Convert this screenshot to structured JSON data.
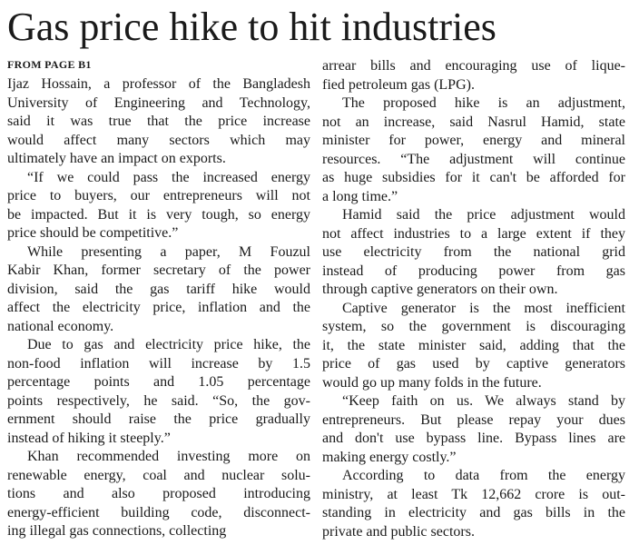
{
  "title": "Gas price hike to hit industries",
  "kicker": "FROM PAGE B1",
  "columns": [
    {
      "paragraphs": [
        {
          "lines": [
            "Ijaz Hossain, a professor of the Bangladesh",
            "University of Engineering and Technology,",
            "said it was true that the price increase",
            "would affect many sectors which may",
            "ultimately have an impact on exports."
          ]
        },
        {
          "lines": [
            "“If we could pass the increased energy",
            "price to buyers, our entrepreneurs will not",
            "be impacted. But it is very tough, so energy",
            "price should be competitive.”"
          ]
        },
        {
          "lines": [
            "While presenting a paper, M Fouzul",
            "Kabir Khan, former secretary of the power",
            "division, said the gas tariff hike would",
            "affect the electricity price, inflation and the",
            "national economy."
          ]
        },
        {
          "lines": [
            "Due to gas and electricity price hike, the",
            "non-food inflation will increase by 1.5",
            "percentage points and 1.05 percentage",
            "points respectively, he said. “So, the gov-",
            "ernment should raise the price gradually",
            "instead of hiking it steeply.”"
          ]
        },
        {
          "lines": [
            "Khan recommended investing more on",
            "renewable energy, coal and nuclear solu-",
            "tions and also proposed introducing",
            "energy-efficient building code, disconnect-",
            "ing illegal gas connections, collecting"
          ]
        }
      ]
    },
    {
      "paragraphs": [
        {
          "lines": [
            "arrear bills and encouraging use of lique-",
            "fied petroleum gas (LPG)."
          ]
        },
        {
          "lines": [
            "The proposed hike is an adjustment,",
            "not an increase, said Nasrul Hamid, state",
            "minister for power, energy and mineral",
            "resources. “The adjustment will continue",
            "as huge subsidies for it can't be afforded for",
            "a long time.”"
          ]
        },
        {
          "lines": [
            "Hamid said the price adjustment would",
            "not affect industries to a large extent if they",
            "use electricity from the national grid",
            "instead of producing power from gas",
            "through captive generators on their own."
          ]
        },
        {
          "lines": [
            "Captive generator is the most inefficient",
            "system, so the government is discouraging",
            "it, the state minister said, adding that the",
            "price of gas used by captive generators",
            "would go up many folds in the future."
          ]
        },
        {
          "lines": [
            "“Keep faith on us. We always stand by",
            "entrepreneurs. But please repay your dues",
            "and don't use bypass line. Bypass lines are",
            "making energy costly.”"
          ]
        },
        {
          "lines": [
            "According to data from the energy",
            "ministry, at least Tk 12,662 crore is out-",
            "standing in electricity and gas bills in the",
            "private and public sectors."
          ]
        }
      ]
    }
  ]
}
